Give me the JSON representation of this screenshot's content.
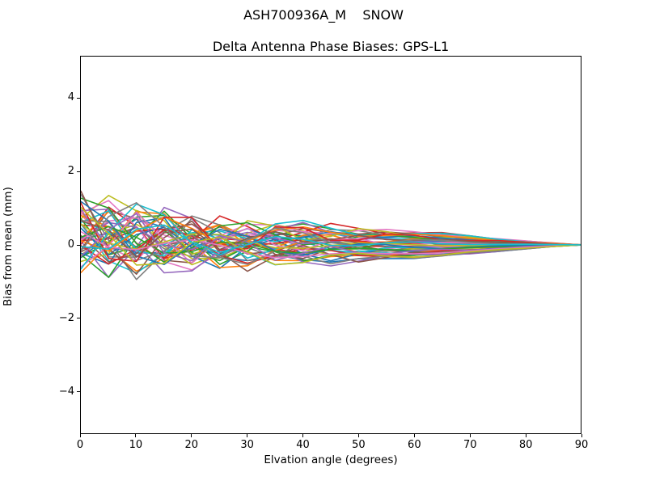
{
  "chart_data": {
    "type": "line",
    "suptitle": "ASH700936A_M    SNOW",
    "title": "Delta Antenna Phase Biases: GPS-L1",
    "xlabel": "Elvation angle (degrees)",
    "ylabel": "Bias from mean (mm)",
    "xlim": [
      0,
      90
    ],
    "ylim": [
      -5.15,
      5.15
    ],
    "xticks": [
      {
        "v": 0,
        "label": "0"
      },
      {
        "v": 10,
        "label": "10"
      },
      {
        "v": 20,
        "label": "20"
      },
      {
        "v": 30,
        "label": "30"
      },
      {
        "v": 40,
        "label": "40"
      },
      {
        "v": 50,
        "label": "50"
      },
      {
        "v": 60,
        "label": "60"
      },
      {
        "v": 70,
        "label": "70"
      },
      {
        "v": 80,
        "label": "80"
      },
      {
        "v": 90,
        "label": "90"
      }
    ],
    "yticks": [
      {
        "v": -4,
        "label": "−4"
      },
      {
        "v": -2,
        "label": "−2"
      },
      {
        "v": 0,
        "label": "0"
      },
      {
        "v": 2,
        "label": "2"
      },
      {
        "v": 4,
        "label": "4"
      }
    ],
    "grid": false,
    "legend": "none",
    "n_series": 50,
    "x_step": 5,
    "line_width": 1.6,
    "palette": [
      "#1f77b4",
      "#ff7f0e",
      "#2ca02c",
      "#d62728",
      "#9467bd",
      "#8c564b",
      "#e377c2",
      "#7f7f7f",
      "#bcbd22",
      "#17becf"
    ],
    "envelope": {
      "x": [
        0,
        10,
        20,
        30,
        40,
        50,
        60,
        70,
        80,
        90
      ],
      "top": [
        1.38,
        1.28,
        0.85,
        0.55,
        0.45,
        0.47,
        0.4,
        0.26,
        0.12,
        0.0
      ],
      "bottom": [
        -0.7,
        -0.62,
        -0.5,
        -0.45,
        -0.35,
        -0.38,
        -0.33,
        -0.22,
        -0.1,
        0.0
      ]
    },
    "model": "y(x) = lift*exp(-x/14) + A*exp(-((x/34)^1.7))*sin(2*pi*x/P + phase_deg) + B*(sin(pi*x/90))^1.25 ; lines converge to 0 mm at 90 deg",
    "series_params_format": [
      "A",
      "P_deg",
      "phase_deg",
      "B",
      "lift"
    ],
    "series_params": [
      [
        0.3,
        16,
        0,
        -0.42,
        0.15
      ],
      [
        0.966,
        29,
        137,
        -0.029,
        0.269
      ],
      [
        0.732,
        27,
        274,
        0.362,
        0.388
      ],
      [
        0.498,
        25,
        51,
        -0.097,
        0.157
      ],
      [
        1.164,
        23,
        188,
        0.294,
        0.276
      ],
      [
        0.93,
        21,
        325,
        -0.165,
        0.395
      ],
      [
        0.696,
        19,
        102,
        0.226,
        0.164
      ],
      [
        0.462,
        17,
        239,
        -0.233,
        0.283
      ],
      [
        1.128,
        30,
        16,
        0.158,
        0.402
      ],
      [
        0.894,
        28,
        153,
        -0.301,
        0.171
      ],
      [
        0.66,
        26,
        290,
        0.09,
        0.29
      ],
      [
        0.426,
        24,
        67,
        -0.369,
        0.409
      ],
      [
        1.092,
        22,
        204,
        0.022,
        0.178
      ],
      [
        0.858,
        20,
        341,
        0.413,
        0.297
      ],
      [
        0.624,
        18,
        118,
        -0.046,
        0.416
      ],
      [
        0.39,
        16,
        255,
        0.345,
        0.185
      ],
      [
        1.056,
        29,
        32,
        -0.114,
        0.304
      ],
      [
        0.822,
        27,
        169,
        0.277,
        0.423
      ],
      [
        0.588,
        25,
        306,
        -0.182,
        0.192
      ],
      [
        0.354,
        23,
        83,
        0.209,
        0.311
      ],
      [
        1.02,
        21,
        220,
        -0.25,
        0.43
      ],
      [
        0.786,
        19,
        357,
        0.141,
        0.199
      ],
      [
        0.552,
        17,
        134,
        -0.318,
        0.318
      ],
      [
        0.318,
        30,
        271,
        0.073,
        0.437
      ],
      [
        0.984,
        28,
        48,
        -0.386,
        0.206
      ],
      [
        0.75,
        26,
        185,
        0.005,
        0.325
      ],
      [
        0.516,
        24,
        322,
        0.396,
        0.444
      ],
      [
        1.182,
        22,
        99,
        -0.063,
        0.213
      ],
      [
        0.948,
        20,
        236,
        0.328,
        0.332
      ],
      [
        0.714,
        18,
        13,
        -0.131,
        0.451
      ],
      [
        0.48,
        16,
        150,
        0.26,
        0.22
      ],
      [
        1.146,
        29,
        287,
        -0.199,
        0.339
      ],
      [
        0.912,
        27,
        64,
        0.192,
        0.458
      ],
      [
        0.678,
        25,
        201,
        -0.267,
        0.227
      ],
      [
        0.444,
        23,
        338,
        0.124,
        0.346
      ],
      [
        1.11,
        21,
        115,
        -0.335,
        0.465
      ],
      [
        0.876,
        19,
        252,
        0.056,
        0.234
      ],
      [
        0.642,
        17,
        29,
        -0.403,
        0.353
      ],
      [
        0.408,
        30,
        166,
        -0.012,
        0.472
      ],
      [
        1.074,
        28,
        303,
        0.379,
        0.241
      ],
      [
        0.84,
        26,
        80,
        -0.08,
        0.36
      ],
      [
        0.606,
        24,
        217,
        0.311,
        0.479
      ],
      [
        0.372,
        22,
        354,
        -0.148,
        0.248
      ],
      [
        1.038,
        20,
        131,
        0.243,
        0.367
      ],
      [
        0.804,
        18,
        268,
        -0.216,
        0.486
      ],
      [
        0.57,
        16,
        45,
        0.175,
        0.255
      ],
      [
        0.336,
        29,
        182,
        -0.284,
        0.374
      ],
      [
        1.002,
        27,
        319,
        0.107,
        0.493
      ],
      [
        0.768,
        25,
        96,
        -0.352,
        0.262
      ],
      [
        0.534,
        23,
        233,
        0.039,
        0.381
      ]
    ]
  }
}
